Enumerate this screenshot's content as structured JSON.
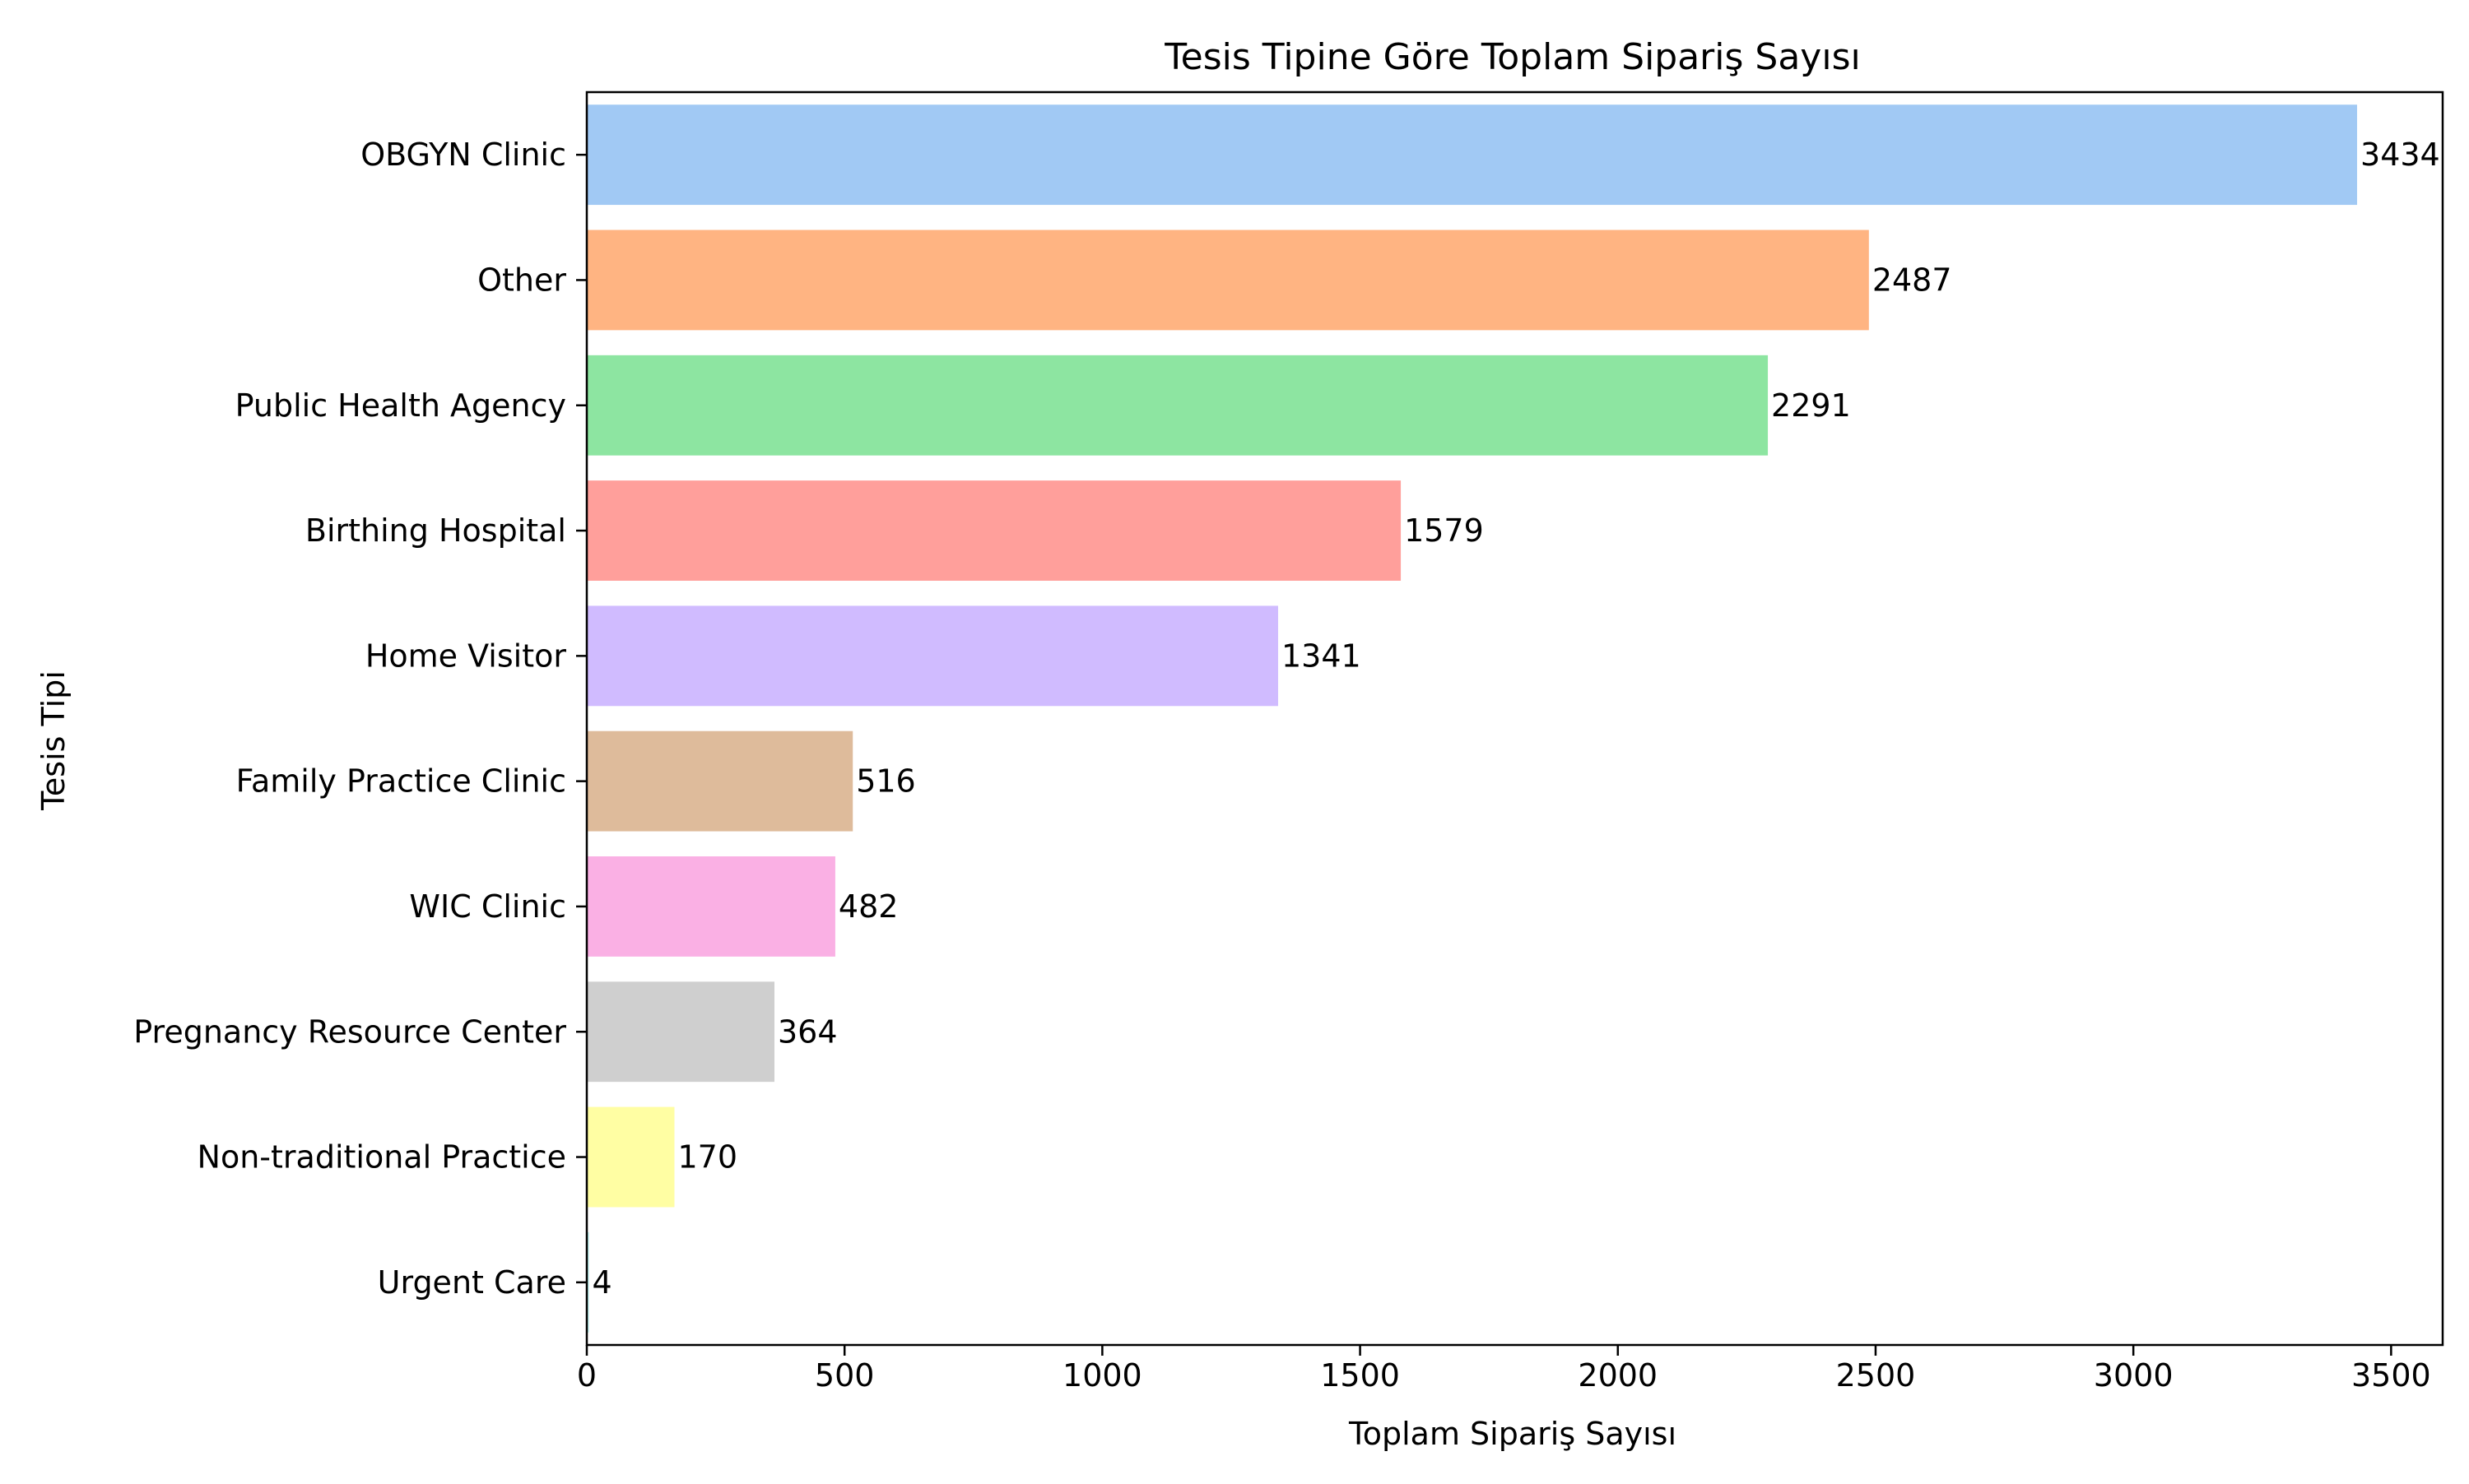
{
  "chart_data": {
    "type": "bar",
    "orientation": "horizontal",
    "title": "Tesis Tipine Göre Toplam Sipariş Sayısı",
    "xlabel": "Toplam Sipariş Sayısı",
    "ylabel": "Tesis Tipi",
    "xlim": [
      0,
      3600
    ],
    "xticks": [
      0,
      500,
      1000,
      1500,
      2000,
      2500,
      3000,
      3500
    ],
    "grid": false,
    "legend": "none",
    "categories": [
      "OBGYN Clinic",
      "Other",
      "Public Health Agency",
      "Birthing Hospital",
      "Home Visitor",
      "Family Practice Clinic",
      "WIC Clinic",
      "Pregnancy Resource Center",
      "Non-traditional Practice",
      "Urgent Care"
    ],
    "values": [
      3434,
      2487,
      2291,
      1579,
      1341,
      516,
      482,
      364,
      170,
      4
    ],
    "colors": [
      "#a1c9f4",
      "#ffb482",
      "#8de5a1",
      "#ff9f9b",
      "#d0bbff",
      "#debb9b",
      "#fab0e4",
      "#cfcfcf",
      "#fffea3",
      "#b9f2f0"
    ]
  }
}
